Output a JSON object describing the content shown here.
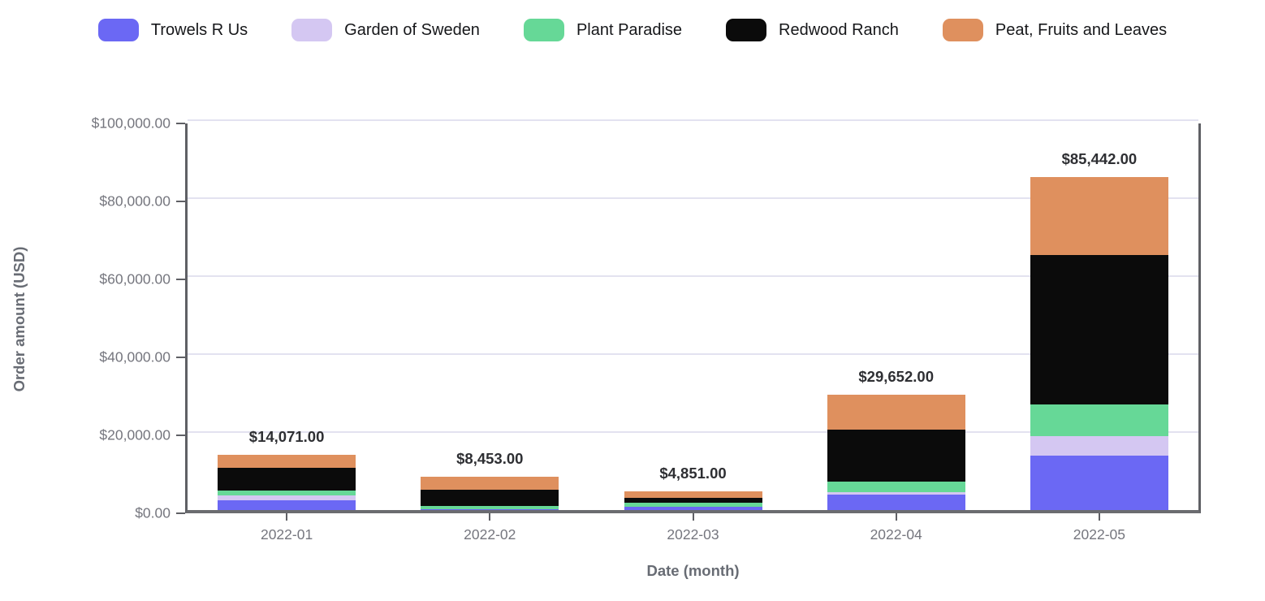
{
  "chart_data": {
    "type": "bar",
    "stacked": true,
    "xlabel": "Date (month)",
    "ylabel": "Order amount (USD)",
    "ylim": [
      0,
      100000
    ],
    "grid": "horizontal",
    "legend_position": "top-center",
    "categories": [
      "2022-01",
      "2022-02",
      "2022-03",
      "2022-04",
      "2022-05"
    ],
    "series": [
      {
        "name": "Trowels R Us",
        "color": "#6b68f4",
        "values": [
          2500,
          250,
          900,
          3950,
          13900
        ]
      },
      {
        "name": "Garden of Sweden",
        "color": "#d4c7f2",
        "values": [
          1300,
          0,
          0,
          550,
          5000
        ]
      },
      {
        "name": "Plant Paradise",
        "color": "#66d897",
        "values": [
          1250,
          850,
          1050,
          2900,
          8150
        ]
      },
      {
        "name": "Redwood Ranch",
        "color": "#0b0b0b",
        "values": [
          5750,
          4150,
          1250,
          13250,
          38400
        ]
      },
      {
        "name": "Peat, Fruits and Leaves",
        "color": "#df905e",
        "values": [
          3271,
          3203,
          1651,
          9002,
          19992
        ]
      }
    ],
    "totals": [
      14071,
      8453,
      4851,
      29652,
      85442
    ],
    "total_labels": [
      "$14,071.00",
      "$8,453.00",
      "$4,851.00",
      "$29,652.00",
      "$85,442.00"
    ],
    "y_ticks": [
      {
        "value": 0,
        "label": "$0.00"
      },
      {
        "value": 20000,
        "label": "$20,000.00"
      },
      {
        "value": 40000,
        "label": "$40,000.00"
      },
      {
        "value": 60000,
        "label": "$60,000.00"
      },
      {
        "value": 80000,
        "label": "$80,000.00"
      },
      {
        "value": 100000,
        "label": "$100,000.00"
      }
    ]
  },
  "colors": {
    "axis_line": "#5f6065",
    "gridline": "#e3e2f0",
    "tick_label": "#75767e",
    "axis_title": "#686c74",
    "total_label": "#2e2f33",
    "legend_text": "#16171a"
  }
}
